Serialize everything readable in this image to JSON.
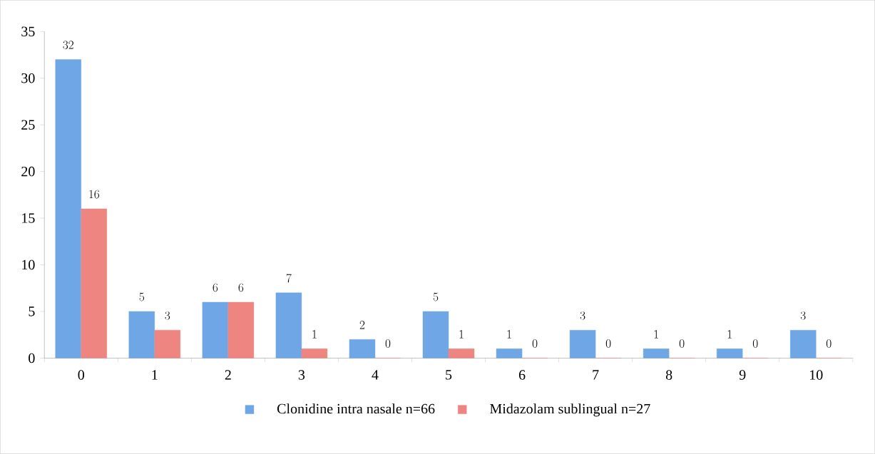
{
  "chart_data": {
    "type": "bar",
    "categories": [
      "0",
      "1",
      "2",
      "3",
      "4",
      "5",
      "6",
      "7",
      "8",
      "9",
      "10"
    ],
    "series": [
      {
        "name": "Clonidine intra nasale n=66",
        "color": "#6fa6e6",
        "values": [
          32,
          5,
          6,
          7,
          2,
          5,
          1,
          3,
          1,
          1,
          3
        ]
      },
      {
        "name": "Midazolam sublingual n=27",
        "color": "#ee8580",
        "values": [
          16,
          3,
          6,
          1,
          0,
          1,
          0,
          0,
          0,
          0,
          0
        ]
      }
    ],
    "ylim": [
      0,
      35
    ],
    "yticks": [
      0,
      5,
      10,
      15,
      20,
      25,
      30,
      35
    ],
    "data_labels": true,
    "legend": "bottom",
    "grid": false
  }
}
